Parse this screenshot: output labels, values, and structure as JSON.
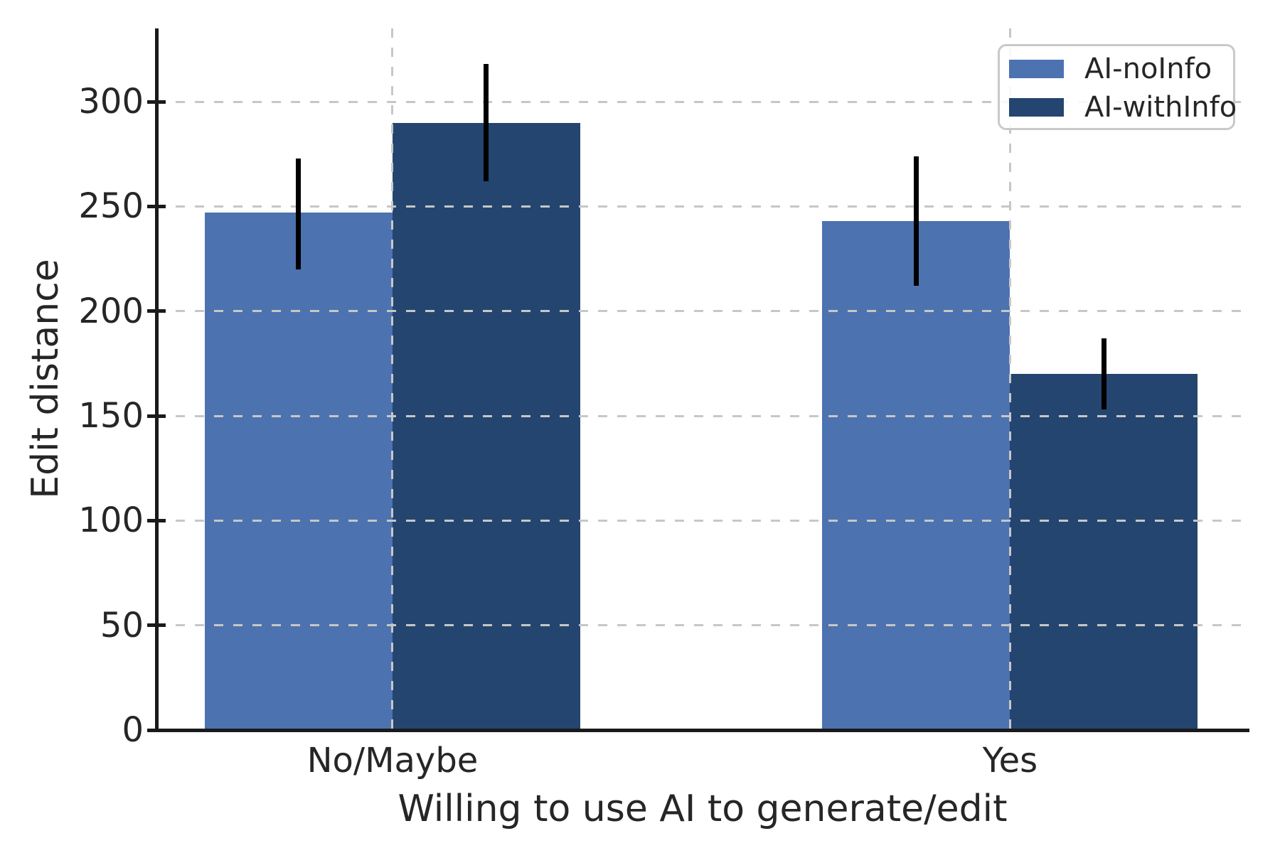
{
  "chart_data": {
    "type": "bar",
    "title": "",
    "xlabel": "Willing to use AI to generate/edit",
    "ylabel": "Edit distance",
    "categories": [
      "No/Maybe",
      "Yes"
    ],
    "series": [
      {
        "name": "AI-noInfo",
        "color": "#4C72B0",
        "values": [
          247,
          243
        ],
        "error_low": [
          220,
          212
        ],
        "error_high": [
          273,
          274
        ]
      },
      {
        "name": "AI-withInfo",
        "color": "#24456F",
        "values": [
          290,
          170
        ],
        "error_low": [
          262,
          153
        ],
        "error_high": [
          318,
          187
        ]
      }
    ],
    "ylim": [
      0,
      335
    ],
    "yticks": [
      0,
      50,
      100,
      150,
      200,
      250,
      300
    ],
    "grid": {
      "horizontal": true,
      "vertical_at_group_centers": true,
      "style": "dashed",
      "color": "#c7c7c7"
    },
    "legend": {
      "position": "upper-right"
    },
    "error_bar_color": "#000000",
    "axis_color": "#1a1a1a",
    "text_color": "#262626"
  }
}
